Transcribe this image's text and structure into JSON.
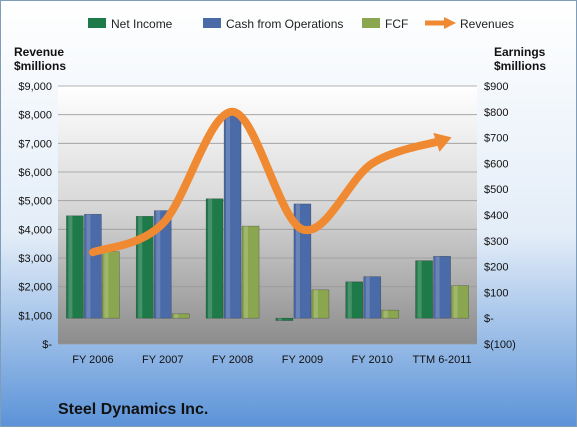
{
  "chart_data": {
    "type": "bar",
    "title": "Steel Dynamics Inc.",
    "categories": [
      "FY 2006",
      "FY 2007",
      "FY 2008",
      "FY 2009",
      "FY 2010",
      "TTM 6-2011"
    ],
    "left_axis": {
      "label_line1": "Revenue",
      "label_line2": "$millions",
      "ylim": [
        0,
        9000
      ],
      "ticks": [
        0,
        1000,
        2000,
        3000,
        4000,
        5000,
        6000,
        7000,
        8000,
        9000
      ],
      "tick_labels": [
        "$-",
        "$1,000",
        "$2,000",
        "$3,000",
        "$4,000",
        "$5,000",
        "$6,000",
        "$7,000",
        "$8,000",
        "$9,000"
      ]
    },
    "right_axis": {
      "label_line1": "Earnings",
      "label_line2": "$millions",
      "ylim": [
        -100,
        900
      ],
      "ticks": [
        -100,
        0,
        100,
        200,
        300,
        400,
        500,
        600,
        700,
        800,
        900
      ],
      "tick_labels": [
        "$(100)",
        "$-",
        "$100",
        "$200",
        "$300",
        "$400",
        "$500",
        "$600",
        "$700",
        "$800",
        "$900"
      ]
    },
    "series": [
      {
        "name": "Net Income",
        "type": "bar",
        "axis": "right",
        "color": "#1f7a4a",
        "values": [
          397,
          395,
          463,
          -9,
          141,
          223
        ]
      },
      {
        "name": "Cash from Operations",
        "type": "bar",
        "axis": "right",
        "color": "#4a6aa8",
        "values": [
          403,
          417,
          790,
          443,
          161,
          240
        ]
      },
      {
        "name": "FCF",
        "type": "bar",
        "axis": "right",
        "color": "#8aa64e",
        "values": [
          258,
          17,
          357,
          110,
          31,
          126
        ]
      },
      {
        "name": "Revenues",
        "type": "line",
        "axis": "left",
        "color": "#f08a32",
        "values": [
          3200,
          4200,
          8100,
          4000,
          6300,
          7100
        ]
      }
    ],
    "grid": true,
    "legend_position": "top"
  }
}
